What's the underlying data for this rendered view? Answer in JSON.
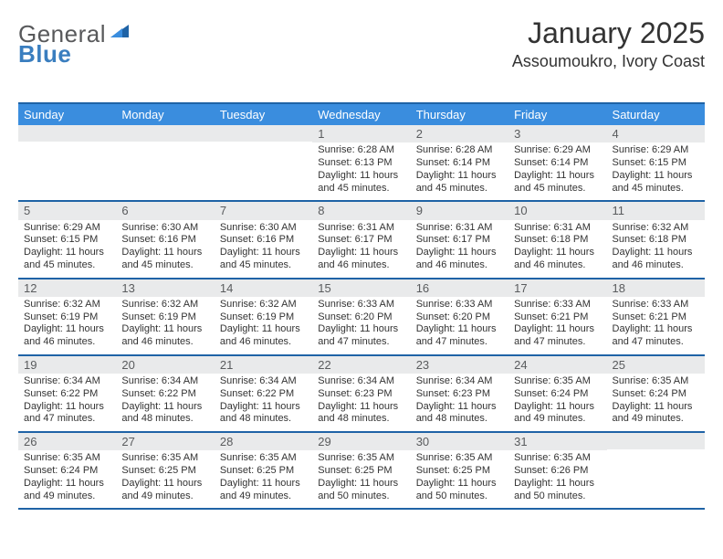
{
  "brand": {
    "word1": "General",
    "word2": "Blue"
  },
  "title": "January 2025",
  "location": "Assoumoukro, Ivory Coast",
  "colors": {
    "header_bg": "#3a8dde",
    "header_text": "#ffffff",
    "rule": "#1f63a6",
    "daynum_bg": "#e9eaeb",
    "daynum_text": "#5a5c5e",
    "brand_gray": "#58595b",
    "brand_blue": "#3a7ebf"
  },
  "day_names": [
    "Sunday",
    "Monday",
    "Tuesday",
    "Wednesday",
    "Thursday",
    "Friday",
    "Saturday"
  ],
  "weeks": [
    [
      {
        "blank": true
      },
      {
        "blank": true
      },
      {
        "blank": true
      },
      {
        "day": 1,
        "sunrise": "6:28 AM",
        "sunset": "6:13 PM",
        "daylight": "11 hours and 45 minutes."
      },
      {
        "day": 2,
        "sunrise": "6:28 AM",
        "sunset": "6:14 PM",
        "daylight": "11 hours and 45 minutes."
      },
      {
        "day": 3,
        "sunrise": "6:29 AM",
        "sunset": "6:14 PM",
        "daylight": "11 hours and 45 minutes."
      },
      {
        "day": 4,
        "sunrise": "6:29 AM",
        "sunset": "6:15 PM",
        "daylight": "11 hours and 45 minutes."
      }
    ],
    [
      {
        "day": 5,
        "sunrise": "6:29 AM",
        "sunset": "6:15 PM",
        "daylight": "11 hours and 45 minutes."
      },
      {
        "day": 6,
        "sunrise": "6:30 AM",
        "sunset": "6:16 PM",
        "daylight": "11 hours and 45 minutes."
      },
      {
        "day": 7,
        "sunrise": "6:30 AM",
        "sunset": "6:16 PM",
        "daylight": "11 hours and 45 minutes."
      },
      {
        "day": 8,
        "sunrise": "6:31 AM",
        "sunset": "6:17 PM",
        "daylight": "11 hours and 46 minutes."
      },
      {
        "day": 9,
        "sunrise": "6:31 AM",
        "sunset": "6:17 PM",
        "daylight": "11 hours and 46 minutes."
      },
      {
        "day": 10,
        "sunrise": "6:31 AM",
        "sunset": "6:18 PM",
        "daylight": "11 hours and 46 minutes."
      },
      {
        "day": 11,
        "sunrise": "6:32 AM",
        "sunset": "6:18 PM",
        "daylight": "11 hours and 46 minutes."
      }
    ],
    [
      {
        "day": 12,
        "sunrise": "6:32 AM",
        "sunset": "6:19 PM",
        "daylight": "11 hours and 46 minutes."
      },
      {
        "day": 13,
        "sunrise": "6:32 AM",
        "sunset": "6:19 PM",
        "daylight": "11 hours and 46 minutes."
      },
      {
        "day": 14,
        "sunrise": "6:32 AM",
        "sunset": "6:19 PM",
        "daylight": "11 hours and 46 minutes."
      },
      {
        "day": 15,
        "sunrise": "6:33 AM",
        "sunset": "6:20 PM",
        "daylight": "11 hours and 47 minutes."
      },
      {
        "day": 16,
        "sunrise": "6:33 AM",
        "sunset": "6:20 PM",
        "daylight": "11 hours and 47 minutes."
      },
      {
        "day": 17,
        "sunrise": "6:33 AM",
        "sunset": "6:21 PM",
        "daylight": "11 hours and 47 minutes."
      },
      {
        "day": 18,
        "sunrise": "6:33 AM",
        "sunset": "6:21 PM",
        "daylight": "11 hours and 47 minutes."
      }
    ],
    [
      {
        "day": 19,
        "sunrise": "6:34 AM",
        "sunset": "6:22 PM",
        "daylight": "11 hours and 47 minutes."
      },
      {
        "day": 20,
        "sunrise": "6:34 AM",
        "sunset": "6:22 PM",
        "daylight": "11 hours and 48 minutes."
      },
      {
        "day": 21,
        "sunrise": "6:34 AM",
        "sunset": "6:22 PM",
        "daylight": "11 hours and 48 minutes."
      },
      {
        "day": 22,
        "sunrise": "6:34 AM",
        "sunset": "6:23 PM",
        "daylight": "11 hours and 48 minutes."
      },
      {
        "day": 23,
        "sunrise": "6:34 AM",
        "sunset": "6:23 PM",
        "daylight": "11 hours and 48 minutes."
      },
      {
        "day": 24,
        "sunrise": "6:35 AM",
        "sunset": "6:24 PM",
        "daylight": "11 hours and 49 minutes."
      },
      {
        "day": 25,
        "sunrise": "6:35 AM",
        "sunset": "6:24 PM",
        "daylight": "11 hours and 49 minutes."
      }
    ],
    [
      {
        "day": 26,
        "sunrise": "6:35 AM",
        "sunset": "6:24 PM",
        "daylight": "11 hours and 49 minutes."
      },
      {
        "day": 27,
        "sunrise": "6:35 AM",
        "sunset": "6:25 PM",
        "daylight": "11 hours and 49 minutes."
      },
      {
        "day": 28,
        "sunrise": "6:35 AM",
        "sunset": "6:25 PM",
        "daylight": "11 hours and 49 minutes."
      },
      {
        "day": 29,
        "sunrise": "6:35 AM",
        "sunset": "6:25 PM",
        "daylight": "11 hours and 50 minutes."
      },
      {
        "day": 30,
        "sunrise": "6:35 AM",
        "sunset": "6:25 PM",
        "daylight": "11 hours and 50 minutes."
      },
      {
        "day": 31,
        "sunrise": "6:35 AM",
        "sunset": "6:26 PM",
        "daylight": "11 hours and 50 minutes."
      },
      {
        "blank": true
      }
    ]
  ],
  "labels": {
    "sunrise": "Sunrise:",
    "sunset": "Sunset:",
    "daylight": "Daylight:"
  }
}
